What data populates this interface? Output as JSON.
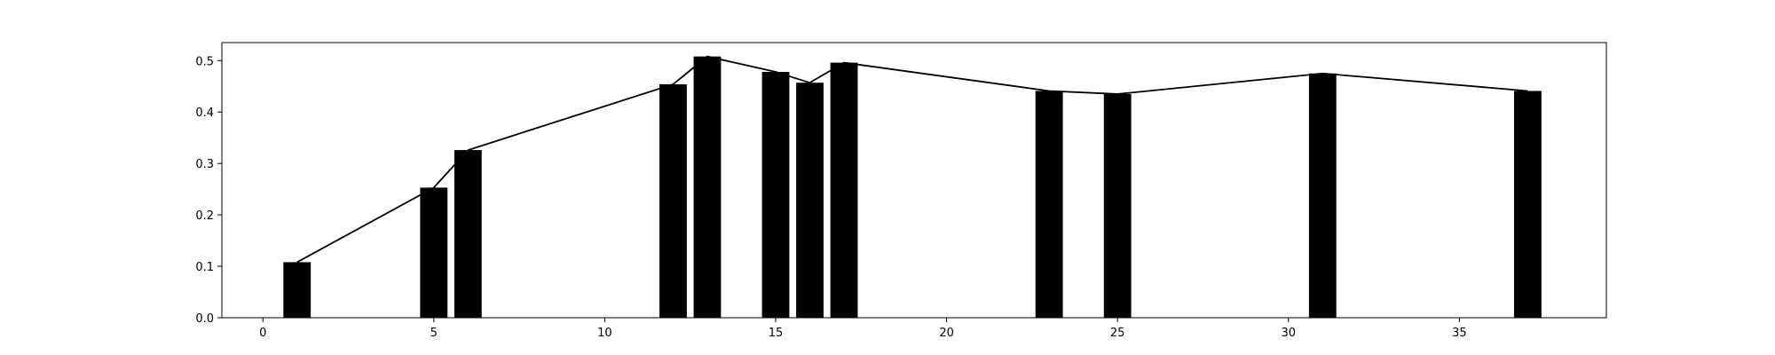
{
  "chart_data": {
    "type": "bar",
    "title": "",
    "xlabel": "",
    "ylabel": "",
    "xlim": [
      -1.2,
      39.3
    ],
    "ylim": [
      0,
      0.535
    ],
    "x_ticks": [
      0,
      5,
      10,
      15,
      20,
      25,
      30,
      35
    ],
    "y_ticks": [
      0.0,
      0.1,
      0.2,
      0.3,
      0.4,
      0.5
    ],
    "y_tick_labels": [
      "0.0",
      "0.1",
      "0.2",
      "0.3",
      "0.4",
      "0.5"
    ],
    "grid": false,
    "bar_width": 0.8,
    "bar_color": "#000000",
    "line_color": "#000000",
    "series": [
      {
        "type": "bar",
        "x": [
          1,
          5,
          6,
          12,
          13,
          15,
          16,
          17,
          23,
          25,
          31,
          37
        ],
        "values": [
          0.108,
          0.253,
          0.326,
          0.454,
          0.508,
          0.478,
          0.457,
          0.496,
          0.441,
          0.435,
          0.475,
          0.441
        ]
      },
      {
        "type": "line",
        "x": [
          1,
          5,
          6,
          12,
          13,
          15,
          16,
          17,
          23,
          25,
          31,
          37
        ],
        "values": [
          0.108,
          0.253,
          0.326,
          0.454,
          0.508,
          0.478,
          0.457,
          0.496,
          0.441,
          0.435,
          0.475,
          0.441
        ]
      }
    ]
  }
}
